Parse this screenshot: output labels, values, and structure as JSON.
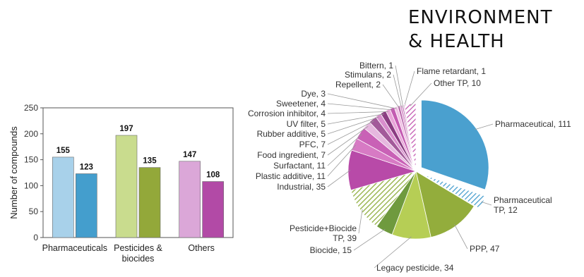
{
  "header": {
    "line1": "ENVIRONMENT",
    "line2": "& HEALTH"
  },
  "chart_data": [
    {
      "type": "bar",
      "ylabel": "Number of compounds",
      "ylim": [
        0,
        250
      ],
      "yticks": [
        0,
        50,
        100,
        150,
        200,
        250
      ],
      "categories": [
        "Pharmaceuticals",
        "Pesticides &\nbiocides",
        "Others"
      ],
      "pairs": [
        {
          "values": [
            155,
            123
          ],
          "colors": [
            "#a8d1ea",
            "#449ecd"
          ]
        },
        {
          "values": [
            197,
            135
          ],
          "colors": [
            "#c9dc8e",
            "#93a83a"
          ]
        },
        {
          "values": [
            147,
            108
          ],
          "colors": [
            "#dba7d8",
            "#b24aa6"
          ]
        }
      ],
      "grid": false,
      "legend": "none"
    },
    {
      "type": "pie",
      "slices": [
        {
          "label": "Pharmaceutical, 111",
          "value": 111,
          "color": "#4aa0cf",
          "hatch": false,
          "explode": true
        },
        {
          "label": "Pharmaceutical\nTP, 12",
          "value": 12,
          "color": "#4aa0cf",
          "hatch": true,
          "explode": true
        },
        {
          "label": "PPP, 47",
          "value": 47,
          "color": "#93ad3c",
          "hatch": false,
          "explode": false
        },
        {
          "label": "Legacy pesticide, 34",
          "value": 34,
          "color": "#b6ce55",
          "hatch": false,
          "explode": false
        },
        {
          "label": "Biocide, 15",
          "value": 15,
          "color": "#6f9a3e",
          "hatch": false,
          "explode": false
        },
        {
          "label": "Pesticide+Biocide\nTP, 39",
          "value": 39,
          "color": "#8fae3e",
          "hatch": true,
          "explode": false
        },
        {
          "label": "Industrial, 35",
          "value": 35,
          "color": "#b84aa8",
          "hatch": false,
          "explode": false
        },
        {
          "label": "Plastic additive, 11",
          "value": 11,
          "color": "#d77ac4",
          "hatch": false,
          "explode": false
        },
        {
          "label": "Surfactant, 11",
          "value": 11,
          "color": "#c961b6",
          "hatch": false,
          "explode": false
        },
        {
          "label": "Food ingredient, 7",
          "value": 7,
          "color": "#e6b8df",
          "hatch": false,
          "explode": false
        },
        {
          "label": "PFC, 7",
          "value": 7,
          "color": "#a35a9a",
          "hatch": false,
          "explode": false
        },
        {
          "label": "Rubber additive, 5",
          "value": 5,
          "color": "#d98ecd",
          "hatch": false,
          "explode": false
        },
        {
          "label": "UV filter, 5",
          "value": 5,
          "color": "#8b3c82",
          "hatch": false,
          "explode": false
        },
        {
          "label": "Corrosion inhibitor, 4",
          "value": 4,
          "color": "#e9a4d9",
          "hatch": false,
          "explode": false
        },
        {
          "label": "Sweetener, 4",
          "value": 4,
          "color": "#c45bb2",
          "hatch": false,
          "explode": false
        },
        {
          "label": "Dye, 3",
          "value": 3,
          "color": "#f0c0e4",
          "hatch": false,
          "explode": false
        },
        {
          "label": "Repellent, 2",
          "value": 2,
          "color": "#b766aa",
          "hatch": false,
          "explode": false
        },
        {
          "label": "Stimulans, 2",
          "value": 2,
          "color": "#dd9fd1",
          "hatch": false,
          "explode": false
        },
        {
          "label": "Bittern, 1",
          "value": 1,
          "color": "#9e4d94",
          "hatch": false,
          "explode": false
        },
        {
          "label": "Flame retardant, 1",
          "value": 1,
          "color": "#e8b6dd",
          "hatch": false,
          "explode": false
        },
        {
          "label": "Other TP, 10",
          "value": 10,
          "color": "#c45bb2",
          "hatch": true,
          "explode": false
        }
      ]
    }
  ]
}
